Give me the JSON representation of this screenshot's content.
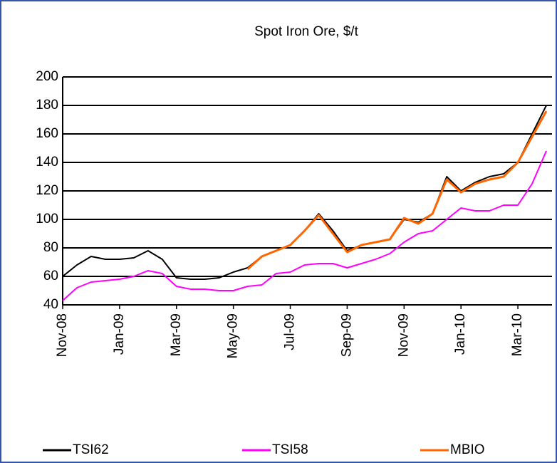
{
  "chart_data": {
    "type": "line",
    "title": "Spot Iron Ore, $/t",
    "categories": [
      "Nov-08",
      null,
      null,
      null,
      "Jan-09",
      null,
      null,
      null,
      "Mar-09",
      null,
      null,
      null,
      "May-09",
      null,
      null,
      null,
      "Jul-09",
      null,
      null,
      null,
      "Sep-09",
      null,
      null,
      null,
      "Nov-09",
      null,
      null,
      null,
      "Jan-10",
      null,
      null,
      null,
      "Mar-10",
      null,
      null
    ],
    "series": [
      {
        "name": "TSI62",
        "color": "#000000",
        "values": [
          60,
          68,
          74,
          72,
          72,
          73,
          78,
          72,
          59,
          58,
          58,
          59,
          63,
          66,
          74,
          78,
          82,
          92,
          104,
          92,
          78,
          82,
          84,
          86,
          100,
          98,
          104,
          130,
          120,
          126,
          130,
          132,
          140,
          160,
          180
        ]
      },
      {
        "name": "TSI58",
        "color": "#ff00ff",
        "values": [
          43,
          52,
          56,
          57,
          58,
          60,
          64,
          62,
          53,
          51,
          51,
          50,
          50,
          53,
          54,
          62,
          63,
          68,
          69,
          69,
          66,
          69,
          72,
          76,
          84,
          90,
          92,
          100,
          108,
          106,
          106,
          110,
          110,
          125,
          148
        ]
      },
      {
        "name": "MBIO",
        "color": "#ff6600",
        "values": [
          null,
          null,
          null,
          null,
          null,
          null,
          null,
          null,
          null,
          null,
          null,
          null,
          null,
          65,
          74,
          78,
          82,
          92,
          103,
          90,
          77,
          82,
          84,
          86,
          101,
          97,
          104,
          128,
          119,
          125,
          128,
          130,
          140,
          158,
          176
        ]
      }
    ],
    "ylim": [
      40,
      200
    ],
    "yticks": [
      40,
      60,
      80,
      100,
      120,
      140,
      160,
      180,
      200
    ],
    "grid": true
  }
}
